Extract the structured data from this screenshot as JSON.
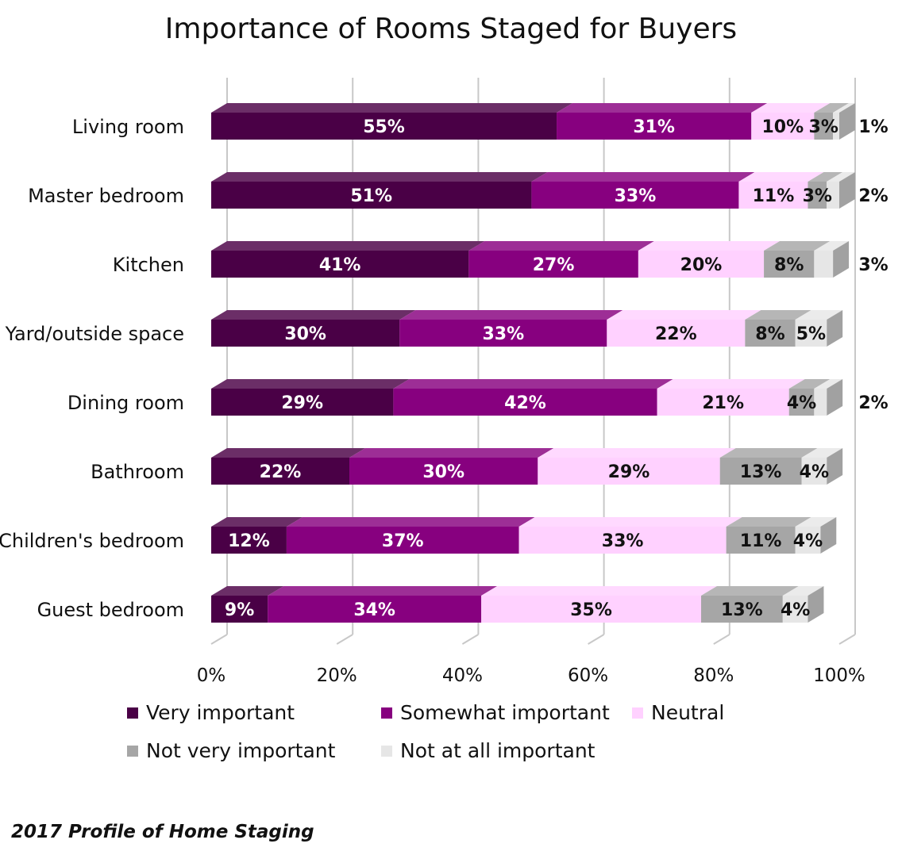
{
  "title": "Importance of Rooms Staged for Buyers",
  "source": "2017 Profile of Home Staging",
  "chart_data": {
    "type": "bar",
    "orientation": "horizontal",
    "stacked": true,
    "title": "Importance of Rooms Staged for Buyers",
    "categories": [
      "Living room",
      "Master bedroom",
      "Kitchen",
      "Yard/outside space",
      "Dining room",
      "Bathroom",
      "Children's bedroom",
      "Guest bedroom"
    ],
    "series": [
      {
        "name": "Very important",
        "color": "#4a0046",
        "values": [
          55,
          51,
          41,
          30,
          29,
          22,
          12,
          9
        ]
      },
      {
        "name": "Somewhat important",
        "color": "#87007f",
        "values": [
          31,
          33,
          27,
          33,
          42,
          30,
          37,
          34
        ]
      },
      {
        "name": "Neutral",
        "color": "#ffd1ff",
        "values": [
          10,
          11,
          20,
          22,
          21,
          29,
          33,
          35
        ]
      },
      {
        "name": "Not very important",
        "color": "#a6a6a6",
        "values": [
          3,
          3,
          8,
          8,
          4,
          13,
          11,
          13
        ]
      },
      {
        "name": "Not at all important",
        "color": "#e6e6e6",
        "values": [
          1,
          2,
          3,
          5,
          2,
          4,
          4,
          4
        ]
      }
    ],
    "xlim": [
      0,
      100
    ],
    "xticks": [
      "0%",
      "20%",
      "40%",
      "60%",
      "80%",
      "100%"
    ],
    "grid": true,
    "legend_position": "bottom"
  }
}
